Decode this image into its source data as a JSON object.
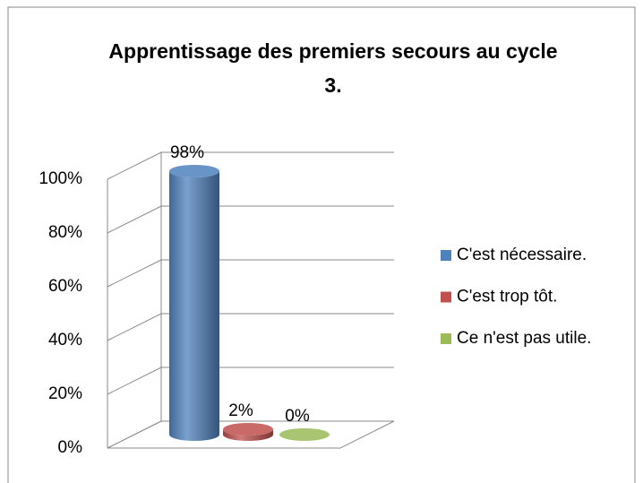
{
  "chart_data": {
    "type": "bar",
    "title": "Apprentissage des premiers secours au cycle 3.",
    "categories": [
      null
    ],
    "series": [
      {
        "name": "C'est nécessaire.",
        "color": "#4f81bd",
        "values": [
          98
        ],
        "value_labels": [
          "98%"
        ]
      },
      {
        "name": "C'est trop tôt.",
        "color": "#c0504d",
        "values": [
          2
        ],
        "value_labels": [
          "2%"
        ]
      },
      {
        "name": "Ce n'est pas utile.",
        "color": "#9bbb59",
        "values": [
          0
        ],
        "value_labels": [
          "0%"
        ]
      }
    ],
    "ylim": [
      0,
      100
    ],
    "yticks": [
      {
        "value": 0,
        "label": "0%"
      },
      {
        "value": 20,
        "label": "20%"
      },
      {
        "value": 40,
        "label": "40%"
      },
      {
        "value": 60,
        "label": "60%"
      },
      {
        "value": 80,
        "label": "80%"
      },
      {
        "value": 100,
        "label": "100%"
      }
    ],
    "grid": true,
    "legend": "right"
  }
}
